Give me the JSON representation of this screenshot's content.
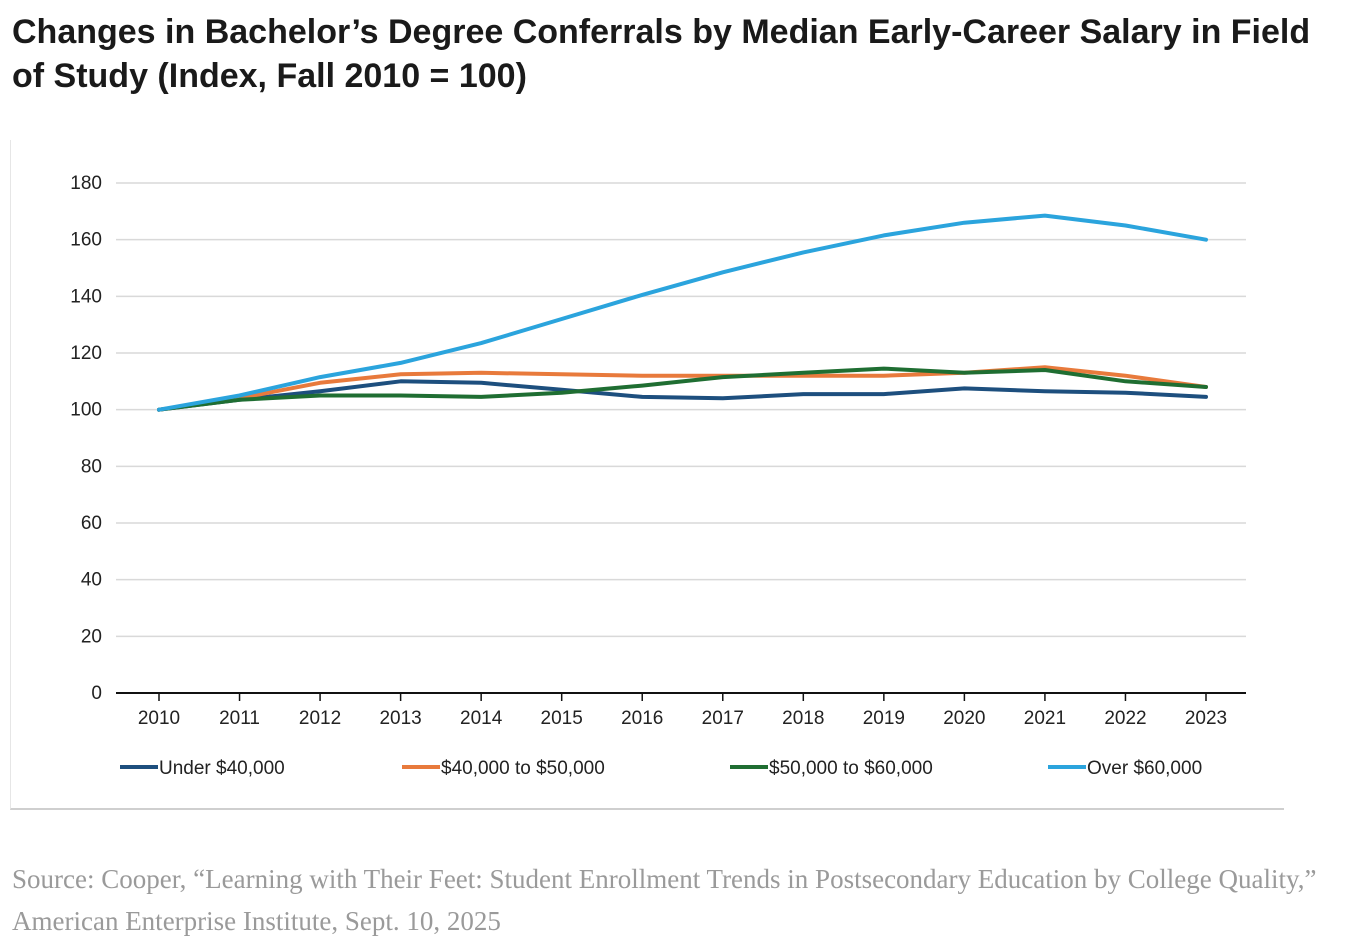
{
  "title": "Changes in Bachelor’s Degree Conferrals by Median Early-Career Salary in Field of Study (Index, Fall 2010 = 100)",
  "source": "Source: Cooper, “Learning with Their Feet: Student Enrollment Trends in Postsecondary Education by College Quality,” American Enterprise Institute, Sept. 10, 2025",
  "chart_data": {
    "type": "line",
    "title": "Changes in Bachelor’s Degree Conferrals by Median Early-Career Salary in Field of Study (Index, Fall 2010 = 100)",
    "xlabel": "",
    "ylabel": "",
    "x": [
      "2010",
      "2011",
      "2012",
      "2013",
      "2014",
      "2015",
      "2016",
      "2017",
      "2018",
      "2019",
      "2020",
      "2021",
      "2022",
      "2023"
    ],
    "ylim": [
      0,
      180
    ],
    "yticks": [
      0,
      20,
      40,
      60,
      80,
      100,
      120,
      140,
      160,
      180
    ],
    "grid": "horizontal",
    "legend": "bottom",
    "series": [
      {
        "name": "Under $40,000",
        "color": "#1d4f7e",
        "values": [
          100,
          103.5,
          106.5,
          110,
          109.5,
          107,
          104.5,
          104,
          105.5,
          105.5,
          107.5,
          106.5,
          106,
          104.5
        ]
      },
      {
        "name": "$40,000 to $50,000",
        "color": "#e87a3c",
        "values": [
          100,
          104,
          109.5,
          112.5,
          113,
          112.5,
          112,
          112,
          112,
          112,
          113,
          115,
          112,
          108
        ]
      },
      {
        "name": "$50,000 to $60,000",
        "color": "#1f6e32",
        "values": [
          100,
          103.5,
          105,
          105,
          104.5,
          106,
          108.5,
          111.5,
          113,
          114.5,
          113,
          114,
          110,
          108
        ]
      },
      {
        "name": "Over $60,000",
        "color": "#2ba4dd",
        "values": [
          100,
          105,
          111.5,
          116.5,
          123.5,
          132,
          140.5,
          148.5,
          155.5,
          161.5,
          166,
          168.5,
          165,
          160
        ]
      }
    ]
  }
}
